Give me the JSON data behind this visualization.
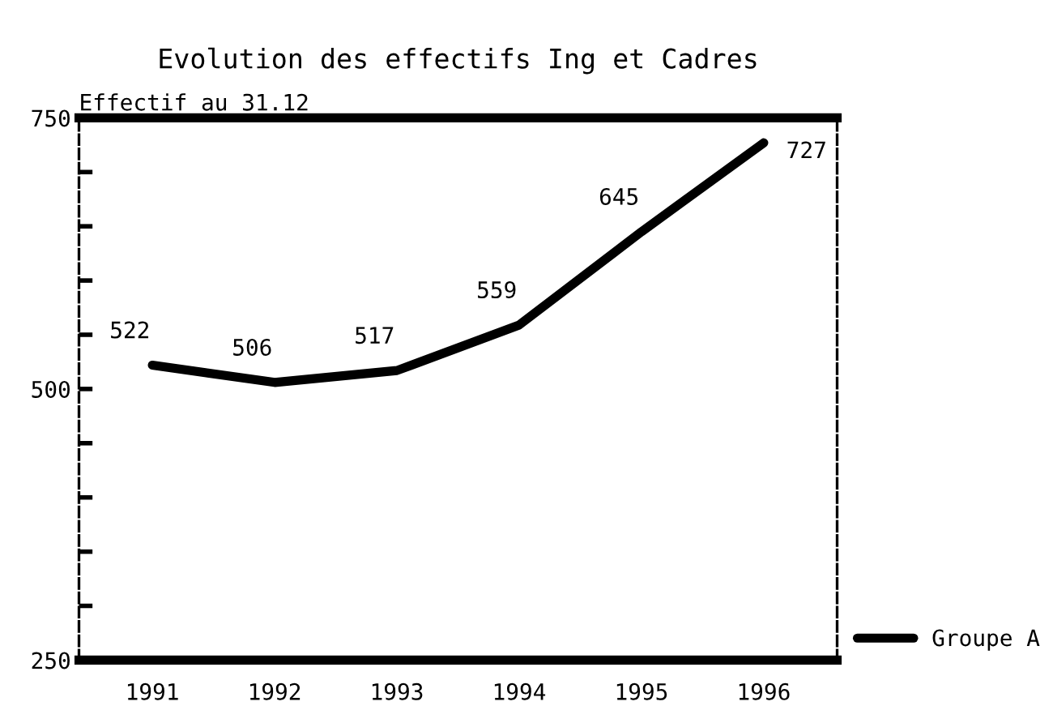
{
  "chart_data": {
    "type": "line",
    "title": "Evolution des effectifs Ing et Cadres",
    "ylabel": "Effectif au 31.12",
    "categories": [
      "1991",
      "1992",
      "1993",
      "1994",
      "1995",
      "1996"
    ],
    "series": [
      {
        "name": "Groupe A",
        "color": "#000000",
        "values": [
          522,
          506,
          517,
          559,
          645,
          727
        ]
      }
    ],
    "ylim": [
      250,
      750
    ],
    "yticks": [
      250,
      {
        "value": 300,
        "label": null
      },
      {
        "value": 350,
        "label": null
      },
      {
        "value": 400,
        "label": null
      },
      {
        "value": 450,
        "label": null
      },
      500,
      {
        "value": 550,
        "label": null
      },
      {
        "value": 600,
        "label": null
      },
      {
        "value": 650,
        "label": null
      },
      {
        "value": 700,
        "label": null
      },
      750
    ],
    "data_labels": true,
    "grid": false,
    "legend": "bottom right",
    "marker": "none",
    "line_style": "solid"
  }
}
